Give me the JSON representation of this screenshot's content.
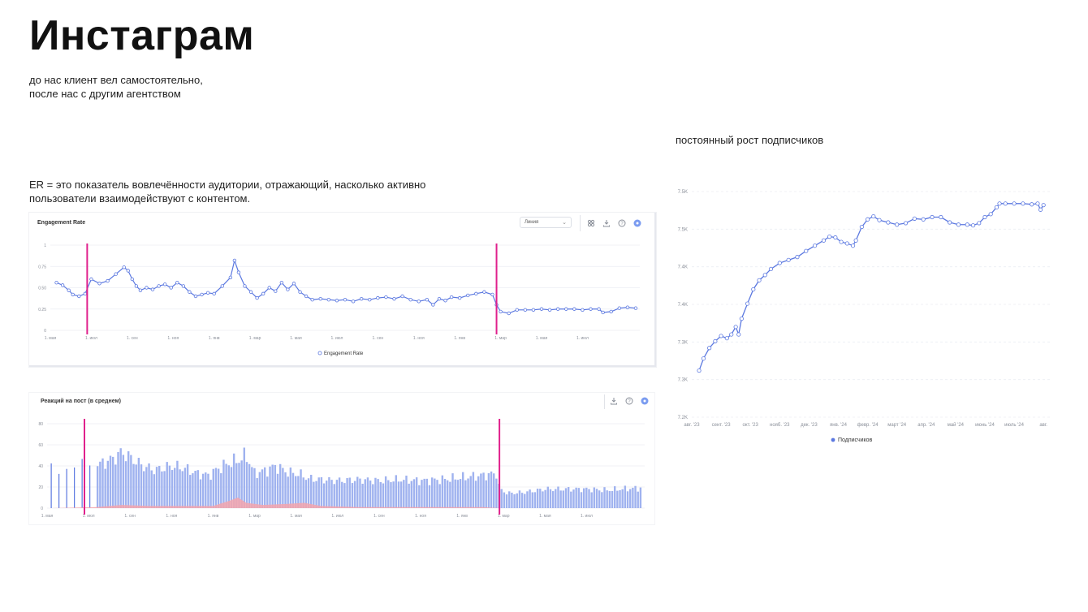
{
  "page": {
    "title": "Инстаграм",
    "subtitle_line1": "до нас клиент вел самостоятельно,",
    "subtitle_line2": "после нас с другим агентством",
    "er_note_line1": "ER = это показатель вовлечённости аудитории, отражающий, насколько активно",
    "er_note_line2": "пользователи взаимодействуют с контентом.",
    "growth_note": "постоянный рост подписчиков"
  },
  "toolbar": {
    "dropdown_label": "Линия",
    "icons": [
      "compare-icon",
      "download-icon",
      "help-icon",
      "settings-icon"
    ]
  },
  "colors": {
    "series": "#5b78e0",
    "marker": "#e0208c",
    "bar": "#9fb2ef",
    "bar_negative": "#f3a5ad",
    "grid": "#eceef3",
    "axis_text": "#8a8f99"
  },
  "chart_data": [
    {
      "id": "engagement",
      "type": "line",
      "title": "Engagement Rate",
      "legend": "Engagement Rate",
      "legend_position": "bottom",
      "grid": true,
      "ylim": [
        0,
        1
      ],
      "y_ticks": [
        "0",
        "0.25",
        "0.50",
        "0.75",
        "1"
      ],
      "x_ticks": [
        "1. мая",
        "1. июл",
        "1. сен",
        "1. ноя",
        "1. янв",
        "1. мар",
        "1. мая",
        "1. июл",
        "1. сен",
        "1. ноя",
        "1. янв",
        "1. мар",
        "1. мая",
        "1. июл"
      ],
      "x_range": [
        0,
        14.4
      ],
      "markers_x": [
        0.9,
        10.9
      ],
      "points": [
        [
          0.15,
          0.56
        ],
        [
          0.3,
          0.53
        ],
        [
          0.45,
          0.47
        ],
        [
          0.55,
          0.42
        ],
        [
          0.7,
          0.4
        ],
        [
          0.85,
          0.43
        ],
        [
          1.0,
          0.6
        ],
        [
          1.2,
          0.55
        ],
        [
          1.4,
          0.58
        ],
        [
          1.6,
          0.66
        ],
        [
          1.8,
          0.74
        ],
        [
          1.9,
          0.7
        ],
        [
          2.0,
          0.6
        ],
        [
          2.1,
          0.52
        ],
        [
          2.2,
          0.47
        ],
        [
          2.35,
          0.5
        ],
        [
          2.5,
          0.48
        ],
        [
          2.65,
          0.52
        ],
        [
          2.8,
          0.54
        ],
        [
          2.95,
          0.5
        ],
        [
          3.1,
          0.56
        ],
        [
          3.25,
          0.52
        ],
        [
          3.4,
          0.45
        ],
        [
          3.55,
          0.4
        ],
        [
          3.7,
          0.42
        ],
        [
          3.85,
          0.44
        ],
        [
          4.0,
          0.43
        ],
        [
          4.2,
          0.52
        ],
        [
          4.4,
          0.62
        ],
        [
          4.5,
          0.82
        ],
        [
          4.6,
          0.68
        ],
        [
          4.75,
          0.52
        ],
        [
          4.9,
          0.45
        ],
        [
          5.05,
          0.38
        ],
        [
          5.2,
          0.43
        ],
        [
          5.35,
          0.5
        ],
        [
          5.5,
          0.46
        ],
        [
          5.65,
          0.56
        ],
        [
          5.8,
          0.48
        ],
        [
          5.95,
          0.55
        ],
        [
          6.1,
          0.45
        ],
        [
          6.25,
          0.4
        ],
        [
          6.4,
          0.36
        ],
        [
          6.6,
          0.37
        ],
        [
          6.8,
          0.36
        ],
        [
          7.0,
          0.35
        ],
        [
          7.2,
          0.36
        ],
        [
          7.4,
          0.34
        ],
        [
          7.6,
          0.37
        ],
        [
          7.8,
          0.36
        ],
        [
          8.0,
          0.38
        ],
        [
          8.2,
          0.39
        ],
        [
          8.4,
          0.37
        ],
        [
          8.6,
          0.4
        ],
        [
          8.8,
          0.36
        ],
        [
          9.0,
          0.34
        ],
        [
          9.2,
          0.36
        ],
        [
          9.35,
          0.3
        ],
        [
          9.5,
          0.37
        ],
        [
          9.65,
          0.35
        ],
        [
          9.8,
          0.39
        ],
        [
          10.0,
          0.38
        ],
        [
          10.2,
          0.41
        ],
        [
          10.4,
          0.43
        ],
        [
          10.6,
          0.45
        ],
        [
          10.8,
          0.42
        ],
        [
          10.9,
          0.3
        ],
        [
          11.0,
          0.22
        ],
        [
          11.2,
          0.2
        ],
        [
          11.4,
          0.24
        ],
        [
          11.6,
          0.24
        ],
        [
          11.8,
          0.24
        ],
        [
          12.0,
          0.25
        ],
        [
          12.2,
          0.24
        ],
        [
          12.4,
          0.25
        ],
        [
          12.6,
          0.25
        ],
        [
          12.8,
          0.25
        ],
        [
          13.0,
          0.24
        ],
        [
          13.2,
          0.25
        ],
        [
          13.4,
          0.25
        ],
        [
          13.5,
          0.21
        ],
        [
          13.7,
          0.22
        ],
        [
          13.9,
          0.26
        ],
        [
          14.1,
          0.27
        ],
        [
          14.3,
          0.26
        ]
      ]
    },
    {
      "id": "reactions",
      "type": "bar",
      "title": "Реакций на пост (в среднем)",
      "grid": true,
      "ylim": [
        0,
        80
      ],
      "y_ticks": [
        "0",
        "20",
        "40",
        "60",
        "80"
      ],
      "x_ticks": [
        "1. мая",
        "1. июл",
        "1. сен",
        "1. ноя",
        "1. янв",
        "1. мар",
        "1. мая",
        "1. июл",
        "1. сен",
        "1. ноя",
        "1. янв",
        "1. мар",
        "1. мая",
        "1. июл"
      ],
      "x_range": [
        0,
        14.4
      ],
      "markers_x": [
        0.9,
        10.9
      ],
      "profile": [
        [
          0.1,
          40
        ],
        [
          0.5,
          38
        ],
        [
          0.9,
          40
        ],
        [
          1.3,
          42
        ],
        [
          1.6,
          47
        ],
        [
          1.8,
          53
        ],
        [
          2.0,
          48
        ],
        [
          2.3,
          40
        ],
        [
          2.6,
          36
        ],
        [
          3.0,
          40
        ],
        [
          3.3,
          38
        ],
        [
          3.6,
          33
        ],
        [
          3.9,
          31
        ],
        [
          4.1,
          37
        ],
        [
          4.4,
          43
        ],
        [
          4.6,
          45
        ],
        [
          4.8,
          50
        ],
        [
          5.0,
          33
        ],
        [
          5.3,
          36
        ],
        [
          5.5,
          40
        ],
        [
          5.8,
          34
        ],
        [
          6.1,
          32
        ],
        [
          6.3,
          28
        ],
        [
          6.6,
          27
        ],
        [
          7.0,
          26
        ],
        [
          7.5,
          27
        ],
        [
          8.0,
          26
        ],
        [
          8.5,
          27
        ],
        [
          9.0,
          26
        ],
        [
          9.5,
          27
        ],
        [
          10.0,
          29
        ],
        [
          10.5,
          31
        ],
        [
          10.85,
          33
        ],
        [
          10.9,
          18
        ],
        [
          11.1,
          14
        ],
        [
          11.5,
          15
        ],
        [
          12.0,
          18
        ],
        [
          12.5,
          18
        ],
        [
          13.0,
          18
        ],
        [
          13.5,
          17
        ],
        [
          13.8,
          18
        ],
        [
          14.3,
          19
        ]
      ],
      "negative_profile": [
        [
          0.1,
          0
        ],
        [
          1.2,
          1
        ],
        [
          1.8,
          3
        ],
        [
          2.5,
          2
        ],
        [
          3.5,
          2
        ],
        [
          4.0,
          2
        ],
        [
          4.4,
          7
        ],
        [
          4.6,
          10
        ],
        [
          4.8,
          5
        ],
        [
          5.2,
          3
        ],
        [
          5.8,
          4
        ],
        [
          6.2,
          5
        ],
        [
          6.6,
          2
        ],
        [
          7.5,
          1
        ],
        [
          8.5,
          1
        ],
        [
          9.5,
          1
        ],
        [
          10.5,
          1
        ],
        [
          10.9,
          0
        ],
        [
          14.3,
          0
        ]
      ]
    },
    {
      "id": "subscribers",
      "type": "line",
      "legend": "Подписчиков",
      "legend_position": "bottom",
      "grid": true,
      "ylim": [
        7200,
        7500
      ],
      "y_ticks": [
        "7.2K",
        "7.3K",
        "7.3K",
        "7.4K",
        "7.4K",
        "7.5K",
        "7.5K"
      ],
      "x_ticks": [
        "авг. '23",
        "сент. '23",
        "окт. '23",
        "нояб. '23",
        "дек. '23",
        "янв. '24",
        "февр. '24",
        "март '24",
        "апр. '24",
        "май '24",
        "июнь '24",
        "июль '24",
        "авг."
      ],
      "x_range": [
        0,
        12.3
      ],
      "points": [
        [
          0.25,
          7262
        ],
        [
          0.4,
          7278
        ],
        [
          0.6,
          7292
        ],
        [
          0.8,
          7301
        ],
        [
          1.0,
          7308
        ],
        [
          1.2,
          7305
        ],
        [
          1.35,
          7310
        ],
        [
          1.5,
          7320
        ],
        [
          1.6,
          7310
        ],
        [
          1.7,
          7331
        ],
        [
          1.9,
          7351
        ],
        [
          2.1,
          7370
        ],
        [
          2.3,
          7382
        ],
        [
          2.5,
          7389
        ],
        [
          2.7,
          7397
        ],
        [
          3.0,
          7405
        ],
        [
          3.3,
          7409
        ],
        [
          3.6,
          7413
        ],
        [
          3.9,
          7421
        ],
        [
          4.2,
          7428
        ],
        [
          4.5,
          7435
        ],
        [
          4.7,
          7440
        ],
        [
          4.9,
          7439
        ],
        [
          5.1,
          7433
        ],
        [
          5.3,
          7431
        ],
        [
          5.5,
          7428
        ],
        [
          5.6,
          7435
        ],
        [
          5.8,
          7453
        ],
        [
          6.0,
          7463
        ],
        [
          6.2,
          7467
        ],
        [
          6.4,
          7462
        ],
        [
          6.7,
          7459
        ],
        [
          7.0,
          7456
        ],
        [
          7.3,
          7458
        ],
        [
          7.6,
          7464
        ],
        [
          7.9,
          7463
        ],
        [
          8.2,
          7466
        ],
        [
          8.5,
          7466
        ],
        [
          8.8,
          7459
        ],
        [
          9.1,
          7456
        ],
        [
          9.4,
          7456
        ],
        [
          9.6,
          7455
        ],
        [
          9.8,
          7458
        ],
        [
          10.0,
          7466
        ],
        [
          10.2,
          7470
        ],
        [
          10.4,
          7479
        ],
        [
          10.5,
          7484
        ],
        [
          10.7,
          7484
        ],
        [
          11.0,
          7484
        ],
        [
          11.3,
          7484
        ],
        [
          11.6,
          7483
        ],
        [
          11.8,
          7484
        ],
        [
          11.9,
          7476
        ],
        [
          12.0,
          7482
        ]
      ]
    }
  ]
}
